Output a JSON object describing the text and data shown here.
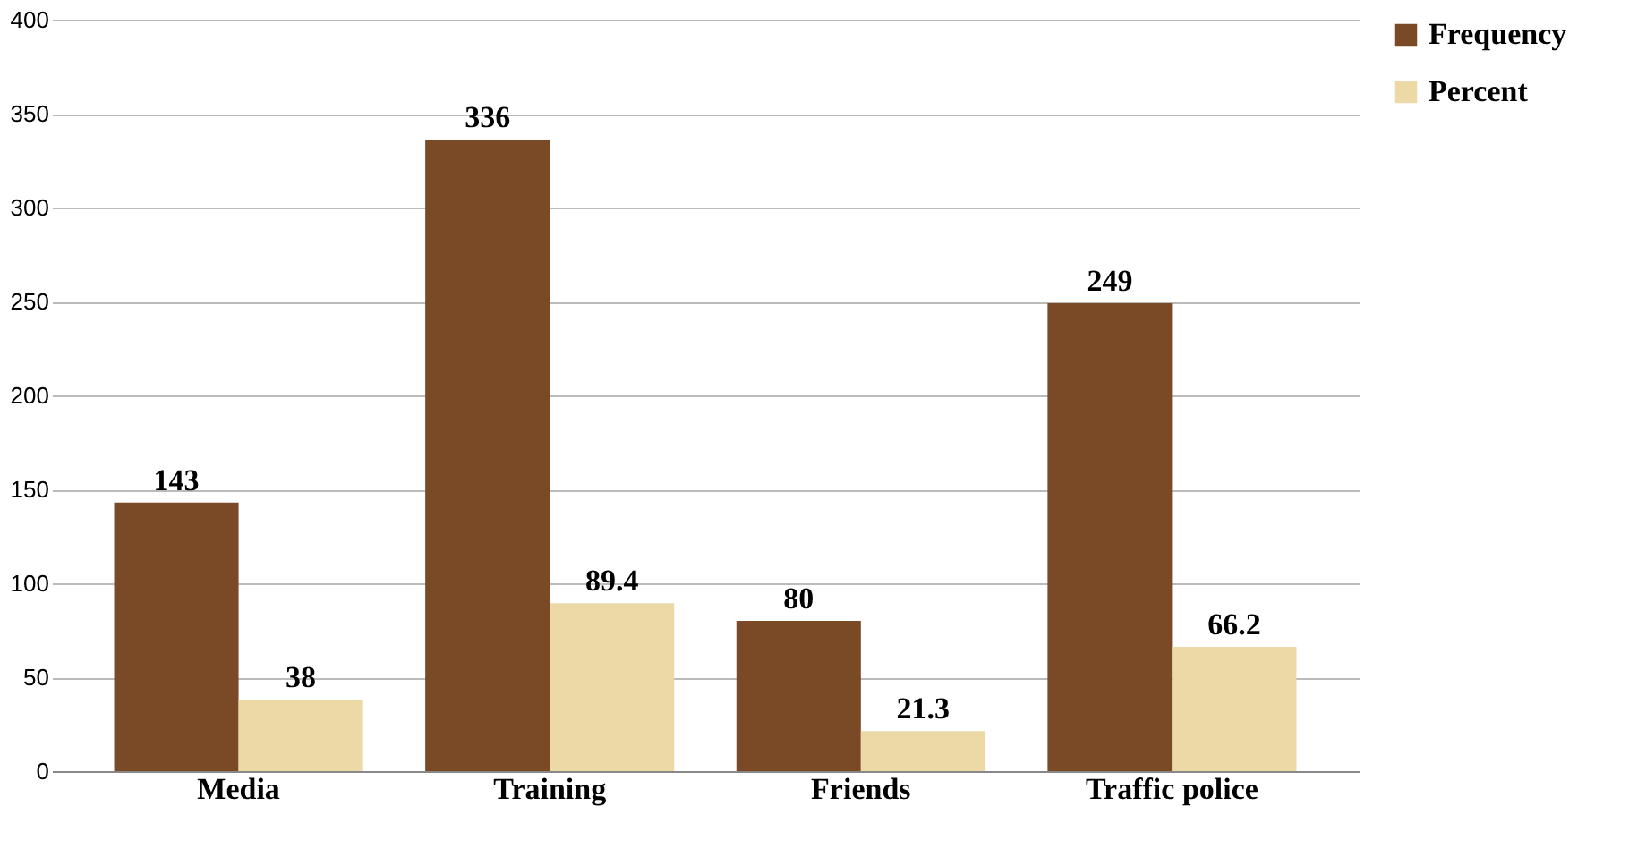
{
  "chart_data": {
    "type": "bar",
    "categories": [
      "Media",
      "Training",
      "Friends",
      "Traffic police"
    ],
    "series": [
      {
        "name": "Frequency",
        "color": "#7a4a26",
        "values": [
          143,
          336,
          80,
          249
        ]
      },
      {
        "name": "Percent",
        "color": "#ecd9a6",
        "values": [
          38,
          89.4,
          21.3,
          66.2
        ]
      }
    ],
    "ylim": [
      0,
      400
    ],
    "yticks": [
      0,
      50,
      100,
      150,
      200,
      250,
      300,
      350,
      400
    ],
    "grid": "y",
    "legend": "right",
    "data_labels": true
  }
}
